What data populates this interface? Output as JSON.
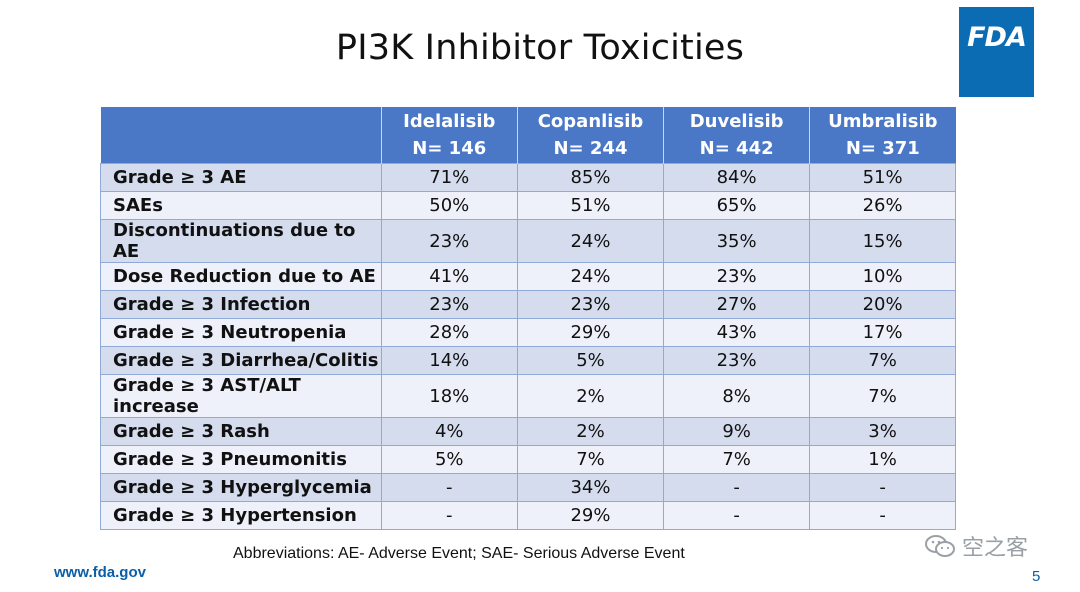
{
  "slide": {
    "title": "PI3K Inhibitor Toxicities",
    "logo": "FDA",
    "abbreviations": "Abbreviations: AE- Adverse Event; SAE- Serious Adverse Event",
    "url": "www.fda.gov",
    "page_number": "5",
    "watermark": "空之客"
  },
  "table": {
    "headers": [
      {
        "name": "",
        "n": ""
      },
      {
        "name": "Idelalisib",
        "n": "N= 146"
      },
      {
        "name": "Copanlisib",
        "n": "N= 244"
      },
      {
        "name": "Duvelisib",
        "n": "N= 442"
      },
      {
        "name": "Umbralisib",
        "n": "N= 371"
      }
    ],
    "rows": [
      [
        "Grade ≥ 3 AE",
        "71%",
        "85%",
        "84%",
        "51%"
      ],
      [
        "SAEs",
        "50%",
        "51%",
        "65%",
        "26%"
      ],
      [
        "Discontinuations due to AE",
        "23%",
        "24%",
        "35%",
        "15%"
      ],
      [
        "Dose Reduction due to AE",
        "41%",
        "24%",
        "23%",
        "10%"
      ],
      [
        "Grade ≥ 3 Infection",
        "23%",
        "23%",
        "27%",
        "20%"
      ],
      [
        "Grade ≥ 3 Neutropenia",
        "28%",
        "29%",
        "43%",
        "17%"
      ],
      [
        "Grade ≥ 3 Diarrhea/Colitis",
        "14%",
        "5%",
        "23%",
        "7%"
      ],
      [
        "Grade ≥ 3 AST/ALT increase",
        "18%",
        "2%",
        "8%",
        "7%"
      ],
      [
        "Grade ≥ 3 Rash",
        "4%",
        "2%",
        "9%",
        "3%"
      ],
      [
        "Grade ≥ 3 Pneumonitis",
        "5%",
        "7%",
        "7%",
        "1%"
      ],
      [
        "Grade ≥ 3 Hyperglycemia",
        "-",
        "34%",
        "-",
        "-"
      ],
      [
        "Grade ≥ 3 Hypertension",
        "-",
        "29%",
        "-",
        "-"
      ]
    ]
  },
  "colors": {
    "header_bg": "#4a78c7",
    "row_odd": "#d4dcee",
    "row_even": "#eef1f9",
    "fda_blue": "#0b6cb3"
  }
}
